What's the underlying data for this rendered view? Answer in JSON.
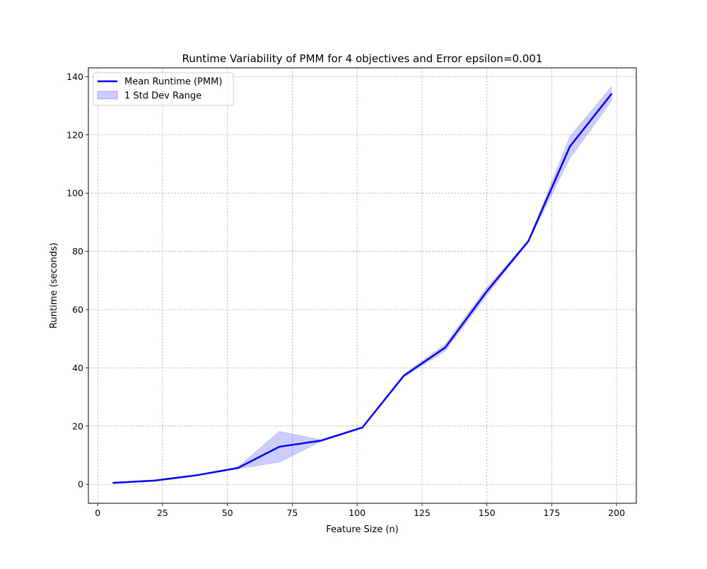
{
  "chart_data": {
    "type": "line",
    "title": "Runtime Variability of PMM for 4 objectives and Error epsilon=0.001",
    "xlabel": "Feature Size (n)",
    "ylabel": "Runtime (seconds)",
    "xlim": [
      -3.6,
      207.6
    ],
    "ylim": [
      -6.5,
      143.0
    ],
    "xticks": [
      0,
      25,
      50,
      75,
      100,
      125,
      150,
      175,
      200
    ],
    "yticks": [
      0,
      20,
      40,
      60,
      80,
      100,
      120,
      140
    ],
    "grid": true,
    "legend_position": "top-left",
    "series": [
      {
        "name": "Mean Runtime (PMM)",
        "kind": "line",
        "color": "#0000ff",
        "x": [
          6,
          22,
          38,
          54,
          70,
          86,
          102,
          118,
          134,
          150,
          166,
          182,
          198
        ],
        "values": [
          0.5,
          1.3,
          3.1,
          5.6,
          12.9,
          15.0,
          19.5,
          37.3,
          47.0,
          66.3,
          83.5,
          116.0,
          134.0
        ]
      },
      {
        "name": "1 Std Dev Range",
        "kind": "band",
        "color": "#0000ff",
        "opacity": 0.2,
        "x": [
          6,
          22,
          38,
          54,
          70,
          86,
          102,
          118,
          134,
          150,
          166,
          182,
          198
        ],
        "lower": [
          0.4,
          1.2,
          3.0,
          5.3,
          7.6,
          14.7,
          19.2,
          36.8,
          45.8,
          65.0,
          83.2,
          112.0,
          131.5
        ],
        "upper": [
          0.6,
          1.4,
          3.2,
          5.9,
          18.2,
          15.3,
          19.8,
          37.8,
          48.2,
          67.6,
          83.8,
          119.5,
          136.5
        ]
      }
    ]
  }
}
